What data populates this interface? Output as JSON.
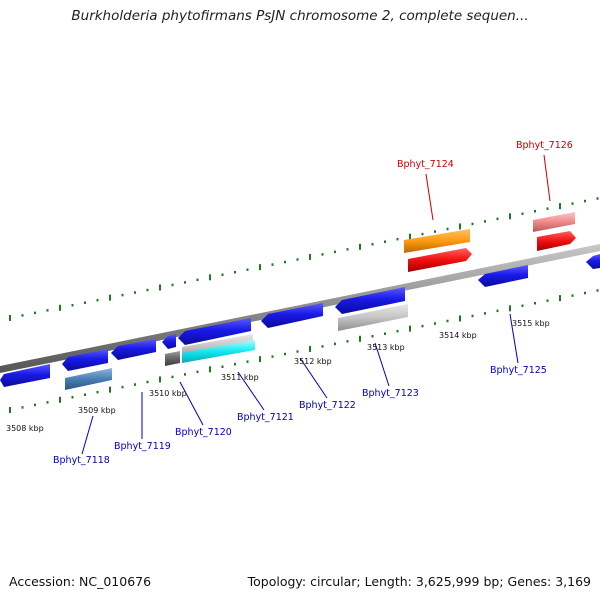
{
  "title": "Burkholderia phytofirmans PsJN chromosome 2, complete sequen...",
  "footer": {
    "accession": "Accession: NC_010676",
    "topology": "Topology: circular; Length: 3,625,999 bp; Genes: 3,169"
  },
  "colors": {
    "backbone": "#8c8c8c",
    "tick": "#1f7a1f",
    "forward_gene": "#1010e0",
    "label_blue": "#0000bb",
    "label_red": "#cc0000"
  },
  "kbp_labels": [
    "3508 kbp",
    "3509 kbp",
    "3510 kbp",
    "3511 kbp",
    "3512 kbp",
    "3513 kbp",
    "3514 kbp",
    "3515 kbp"
  ],
  "gene_labels": [
    {
      "text": "Bphyt_7118",
      "color": "#0000bb"
    },
    {
      "text": "Bphyt_7119",
      "color": "#0000bb"
    },
    {
      "text": "Bphyt_7120",
      "color": "#0000bb"
    },
    {
      "text": "Bphyt_7121",
      "color": "#0000bb"
    },
    {
      "text": "Bphyt_7122",
      "color": "#0000bb"
    },
    {
      "text": "Bphyt_7123",
      "color": "#0000bb"
    },
    {
      "text": "Bphyt_7124",
      "color": "#cc0000"
    },
    {
      "text": "Bphyt_7125",
      "color": "#0000bb"
    },
    {
      "text": "Bphyt_7126",
      "color": "#cc0000"
    }
  ]
}
